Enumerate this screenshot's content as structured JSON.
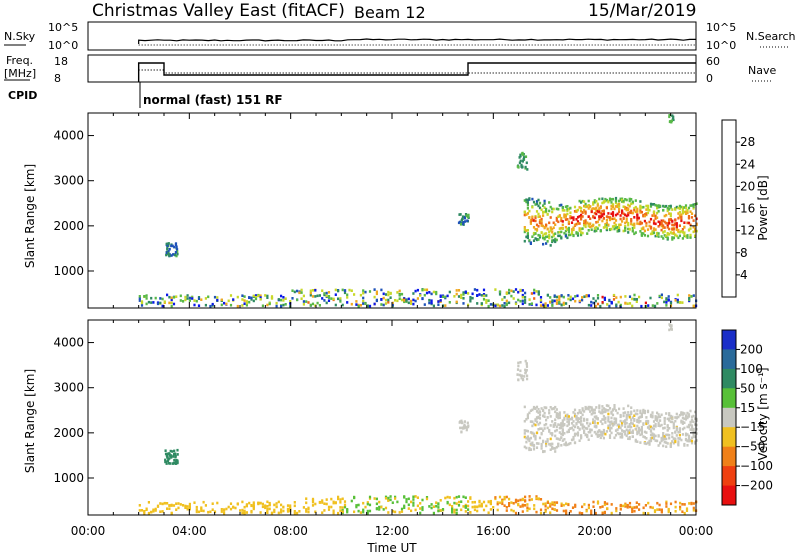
{
  "header": {
    "station": "Christmas Valley East (fitACF)",
    "beam": "Beam 12",
    "date": "15/Mar/2019"
  },
  "top_panels": {
    "nsky": {
      "label": "N.Sky",
      "ticks": [
        "10^5",
        "10^0"
      ],
      "right_ticks": [
        "10^5",
        "10^0"
      ],
      "right_label": "N.Search"
    },
    "freq": {
      "label_line1": "Freq.",
      "label_line2": "[MHz]",
      "ticks": [
        "18",
        "8"
      ],
      "right_ticks": [
        "60",
        "0"
      ],
      "right_label": "Nave"
    },
    "cpid": {
      "label": "CPID",
      "mode_text": "normal (fast) 151 RF"
    }
  },
  "chart_data": [
    {
      "type": "heatmap",
      "name": "power-panel",
      "ylabel": "Slant Range [km]",
      "ylim": [
        180,
        4500
      ],
      "yticks": [
        "1000",
        "2000",
        "3000",
        "4000"
      ],
      "xlim_hours": [
        0,
        24
      ],
      "colorbar": {
        "label": "Power [dB]",
        "range": [
          0,
          32
        ],
        "ticks": [
          "4",
          "8",
          "12",
          "16",
          "20",
          "24",
          "28"
        ],
        "colors": [
          "#0a18e8",
          "#1e52b8",
          "#2f8a62",
          "#58b848",
          "#c8d82a",
          "#f0a820",
          "#ef6818",
          "#e81010"
        ]
      }
    },
    {
      "type": "heatmap",
      "name": "velocity-panel",
      "ylabel": "Slant Range [km]",
      "ylim": [
        180,
        4500
      ],
      "yticks": [
        "1000",
        "2000",
        "3000",
        "4000"
      ],
      "xlim_hours": [
        0,
        24
      ],
      "colorbar": {
        "label": "Velocity [m s⁻¹]",
        "range": [
          -250,
          250
        ],
        "ticks": [
          "200",
          "100",
          "50",
          "15",
          "−15",
          "−50",
          "−100",
          "−200"
        ],
        "colors": [
          "#1a2ec8",
          "#2a6a9a",
          "#2f8a62",
          "#58c038",
          "#c8c8c0",
          "#f0c020",
          "#f08018",
          "#ef4010",
          "#e81010"
        ]
      }
    }
  ],
  "time_axis": {
    "label": "Time UT",
    "ticks": [
      "00:00",
      "04:00",
      "08:00",
      "12:00",
      "16:00",
      "20:00",
      "00:00"
    ]
  },
  "colors": {
    "power_background": "#ffffff",
    "velocity_ground": "#d8a838",
    "velocity_iono": "#c8c8c0"
  }
}
